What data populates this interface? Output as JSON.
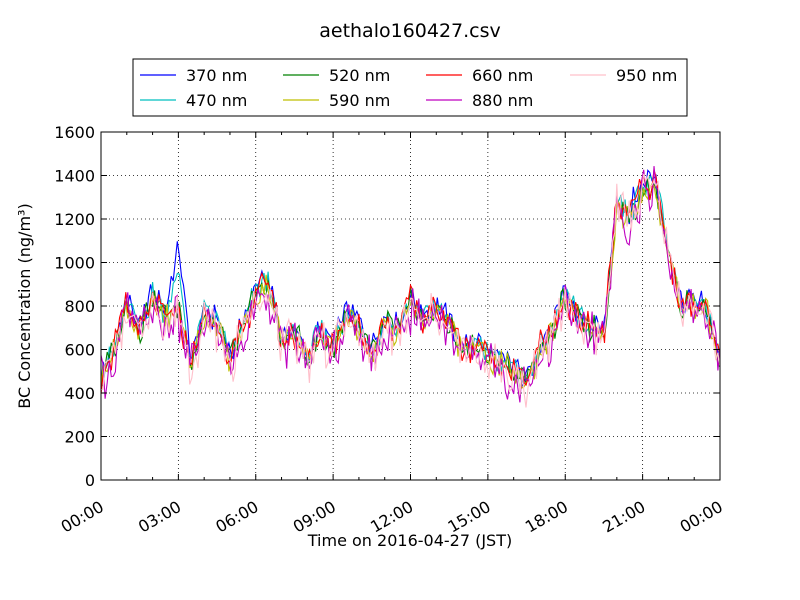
{
  "chart_data": {
    "type": "line",
    "title": "aethalo160427.csv",
    "xlabel": "Time on 2016-04-27 (JST)",
    "ylabel": "BC Concentration (ng/m³)",
    "xlim": [
      "2016-04-27 00:00",
      "2016-04-28 00:00"
    ],
    "ylim": [
      0,
      1600
    ],
    "x_tick_labels": [
      "00:00",
      "03:00",
      "06:00",
      "09:00",
      "12:00",
      "15:00",
      "18:00",
      "21:00",
      "00:00"
    ],
    "y_tick_labels": [
      "0",
      "200",
      "400",
      "600",
      "800",
      "1000",
      "1200",
      "1400",
      "1600"
    ],
    "grid": true,
    "legend_position": "top, above plot, 4 columns",
    "x_hours": [
      0,
      0.5,
      1,
      1.5,
      2,
      2.5,
      3,
      3.5,
      4,
      4.5,
      5,
      5.5,
      6,
      6.5,
      7,
      7.5,
      8,
      8.5,
      9,
      9.5,
      10,
      10.5,
      11,
      11.5,
      12,
      12.5,
      13,
      13.5,
      14,
      14.5,
      15,
      15.5,
      16,
      16.5,
      17,
      17.5,
      18,
      18.5,
      19,
      19.5,
      20,
      20.5,
      21,
      21.5,
      22,
      22.5,
      23,
      23.5,
      24
    ],
    "series": [
      {
        "name": "370 nm",
        "color": "#0000ff",
        "values": [
          480,
          620,
          850,
          700,
          870,
          780,
          1100,
          550,
          780,
          740,
          560,
          720,
          900,
          930,
          650,
          700,
          580,
          690,
          640,
          780,
          720,
          600,
          740,
          700,
          840,
          760,
          800,
          740,
          620,
          640,
          600,
          560,
          520,
          470,
          620,
          700,
          860,
          760,
          720,
          680,
          1300,
          1240,
          1380,
          1400,
          1060,
          820,
          840,
          790,
          550
        ]
      },
      {
        "name": "470 nm",
        "color": "#00bfbf",
        "values": [
          480,
          600,
          820,
          690,
          850,
          760,
          960,
          540,
          800,
          730,
          560,
          710,
          880,
          910,
          640,
          690,
          570,
          680,
          630,
          770,
          710,
          590,
          730,
          690,
          830,
          750,
          790,
          730,
          610,
          630,
          590,
          550,
          510,
          460,
          610,
          690,
          850,
          750,
          710,
          670,
          1280,
          1220,
          1360,
          1380,
          1050,
          810,
          830,
          780,
          540
        ]
      },
      {
        "name": "520 nm",
        "color": "#008000",
        "values": [
          470,
          590,
          800,
          680,
          830,
          740,
          800,
          530,
          760,
          720,
          550,
          700,
          870,
          900,
          630,
          680,
          560,
          670,
          620,
          760,
          700,
          580,
          720,
          680,
          820,
          740,
          780,
          720,
          600,
          620,
          580,
          540,
          500,
          450,
          600,
          680,
          840,
          740,
          700,
          660,
          1260,
          1200,
          1340,
          1360,
          1040,
          800,
          820,
          770,
          530
        ]
      },
      {
        "name": "590 nm",
        "color": "#bfbf00",
        "values": [
          470,
          585,
          790,
          675,
          820,
          735,
          780,
          525,
          750,
          715,
          545,
          695,
          860,
          890,
          625,
          675,
          555,
          665,
          615,
          755,
          695,
          575,
          715,
          675,
          815,
          735,
          775,
          715,
          595,
          615,
          575,
          535,
          495,
          445,
          595,
          675,
          835,
          735,
          695,
          655,
          1250,
          1190,
          1330,
          1350,
          1030,
          795,
          815,
          765,
          525
        ]
      },
      {
        "name": "660 nm",
        "color": "#ff0000",
        "values": [
          475,
          590,
          800,
          680,
          830,
          745,
          790,
          530,
          760,
          720,
          550,
          700,
          870,
          900,
          630,
          680,
          560,
          670,
          620,
          760,
          700,
          580,
          720,
          680,
          830,
          745,
          785,
          725,
          605,
          625,
          585,
          545,
          505,
          455,
          605,
          685,
          845,
          745,
          705,
          665,
          1270,
          1210,
          1350,
          1370,
          1045,
          805,
          825,
          775,
          535
        ]
      },
      {
        "name": "880 nm",
        "color": "#bf00bf",
        "values": [
          460,
          560,
          760,
          650,
          790,
          700,
          740,
          500,
          720,
          690,
          520,
          670,
          830,
          860,
          600,
          650,
          530,
          640,
          590,
          730,
          670,
          550,
          690,
          650,
          790,
          710,
          750,
          690,
          570,
          590,
          550,
          510,
          470,
          420,
          570,
          650,
          810,
          710,
          670,
          630,
          1240,
          1180,
          1320,
          1340,
          1010,
          780,
          800,
          750,
          510
        ]
      },
      {
        "name": "950 nm",
        "color": "#ffc0cb",
        "values": [
          465,
          570,
          770,
          660,
          800,
          710,
          750,
          510,
          730,
          700,
          530,
          680,
          840,
          870,
          610,
          660,
          540,
          650,
          600,
          740,
          680,
          560,
          700,
          660,
          800,
          720,
          760,
          700,
          580,
          600,
          560,
          520,
          480,
          430,
          580,
          660,
          820,
          720,
          680,
          640,
          1250,
          1190,
          1330,
          1350,
          1020,
          790,
          810,
          760,
          520
        ]
      }
    ]
  }
}
